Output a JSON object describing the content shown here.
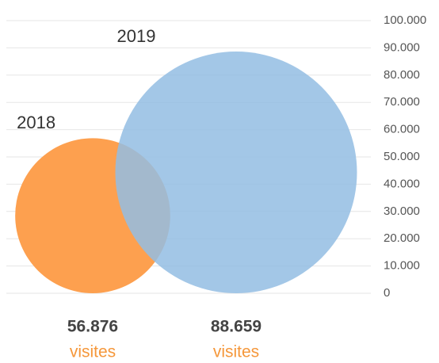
{
  "chart_data": {
    "type": "circle",
    "categories": [
      "2018",
      "2019"
    ],
    "values": [
      56876,
      88659
    ],
    "value_labels": [
      "56.876",
      "88.659"
    ],
    "unit_label": "visites",
    "colors": [
      "#fda04f",
      "#93bde3"
    ],
    "ylim": [
      0,
      100000
    ],
    "yticks": [
      0,
      {
        "value": 10000,
        "label": "10.000"
      },
      {
        "value": 20000,
        "label": "20.000"
      },
      {
        "value": 30000,
        "label": "30.000"
      },
      {
        "value": 40000,
        "label": "40.000"
      },
      {
        "value": 50000,
        "label": "50.000"
      },
      {
        "value": 60000,
        "label": "60.000"
      },
      {
        "value": 70000,
        "label": "70.000"
      },
      {
        "value": 80000,
        "label": "80.000"
      },
      {
        "value": 90000,
        "label": "90.000"
      },
      {
        "value": 100000,
        "label": "100.000"
      }
    ],
    "grid": true
  }
}
